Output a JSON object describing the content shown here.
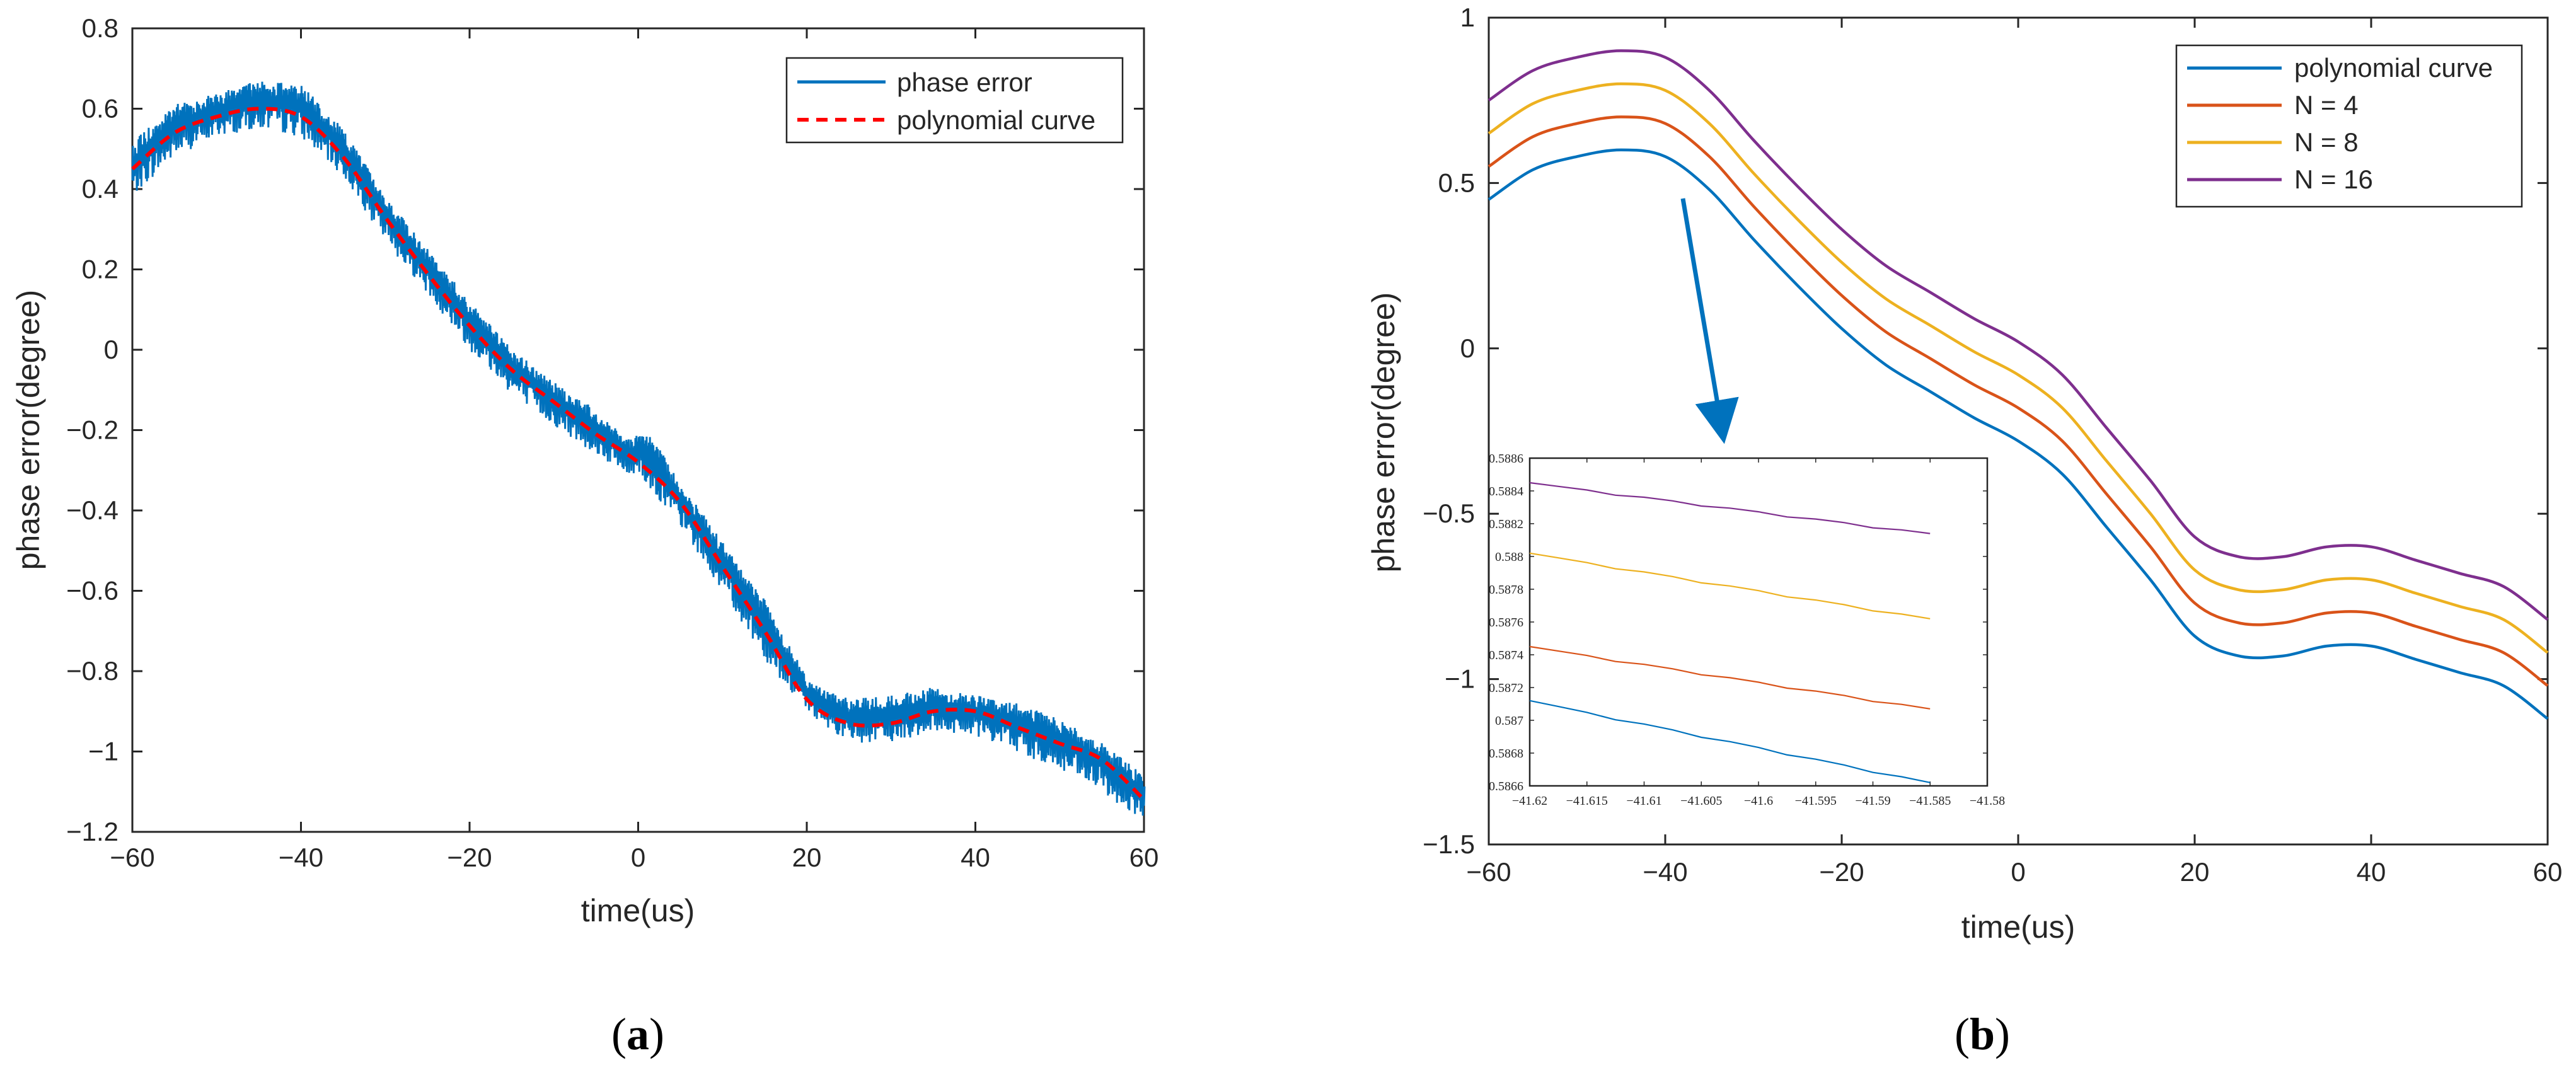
{
  "chart_data": [
    {
      "type": "line",
      "panel_label": "(a)",
      "panel_letter": "a",
      "xlabel": "time(us)",
      "ylabel": "phase error(degree)",
      "xlim": [
        -60,
        60
      ],
      "ylim": [
        -1.2,
        0.8
      ],
      "xticks": [
        -60,
        -40,
        -20,
        0,
        20,
        40,
        60
      ],
      "yticks": [
        -1.2,
        -1,
        -0.8,
        -0.6,
        -0.4,
        -0.2,
        0,
        0.2,
        0.4,
        0.6,
        0.8
      ],
      "xtick_labels": [
        "−60",
        "−40",
        "−20",
        "0",
        "20",
        "40",
        "60"
      ],
      "ytick_labels": [
        "−1.2",
        "−1",
        "−0.8",
        "−0.6",
        "−0.4",
        "−0.2",
        "0",
        "0.2",
        "0.4",
        "0.6",
        "0.8"
      ],
      "legend_position": "top-right",
      "series": [
        {
          "name": "phase error",
          "color": "#0072BD",
          "style": "noisy band",
          "x": [
            -60,
            -55,
            -50,
            -45,
            -40,
            -35,
            -30,
            -25,
            -20,
            -15,
            -10,
            -5,
            -1,
            0,
            1,
            5,
            10,
            15,
            20,
            25,
            30,
            35,
            40,
            45,
            50,
            55,
            60
          ],
          "y_low": [
            0.38,
            0.48,
            0.53,
            0.55,
            0.53,
            0.43,
            0.27,
            0.14,
            0.0,
            -0.11,
            -0.19,
            -0.26,
            -0.32,
            -0.3,
            -0.34,
            -0.44,
            -0.6,
            -0.77,
            -0.9,
            -0.98,
            -0.98,
            -0.95,
            -0.96,
            -1.0,
            -1.05,
            -1.1,
            -1.18
          ],
          "y_high": [
            0.52,
            0.61,
            0.64,
            0.67,
            0.66,
            0.55,
            0.38,
            0.25,
            0.12,
            0.0,
            -0.08,
            -0.15,
            -0.22,
            -0.2,
            -0.2,
            -0.33,
            -0.48,
            -0.62,
            -0.82,
            -0.87,
            -0.86,
            -0.84,
            -0.86,
            -0.88,
            -0.92,
            -0.98,
            -1.06
          ]
        },
        {
          "name": "polynomial curve",
          "color": "#FF0000",
          "style": "dashed",
          "x": [
            -60,
            -55,
            -50,
            -45,
            -40,
            -35,
            -30,
            -25,
            -20,
            -15,
            -10,
            -5,
            0,
            5,
            10,
            15,
            20,
            25,
            30,
            35,
            40,
            45,
            50,
            55,
            60
          ],
          "y": [
            0.45,
            0.54,
            0.58,
            0.6,
            0.58,
            0.48,
            0.33,
            0.19,
            0.06,
            -0.05,
            -0.13,
            -0.21,
            -0.28,
            -0.38,
            -0.54,
            -0.7,
            -0.87,
            -0.93,
            -0.93,
            -0.9,
            -0.9,
            -0.94,
            -0.98,
            -1.02,
            -1.12
          ]
        }
      ]
    },
    {
      "type": "line",
      "panel_label": "(b)",
      "panel_letter": "b",
      "xlabel": "time(us)",
      "ylabel": "phase error(degree)",
      "xlim": [
        -60,
        60
      ],
      "ylim": [
        -1.5,
        1
      ],
      "xticks": [
        -60,
        -40,
        -20,
        0,
        20,
        40,
        60
      ],
      "yticks": [
        -1.5,
        -1,
        -0.5,
        0,
        0.5,
        1
      ],
      "xtick_labels": [
        "−60",
        "−40",
        "−20",
        "0",
        "20",
        "40",
        "60"
      ],
      "ytick_labels": [
        "−1.5",
        "−1",
        "−0.5",
        "0",
        "0.5",
        "1"
      ],
      "legend_position": "top-right",
      "x": [
        -60,
        -55,
        -50,
        -45,
        -40,
        -35,
        -30,
        -25,
        -20,
        -15,
        -10,
        -5,
        0,
        5,
        10,
        15,
        20,
        25,
        30,
        35,
        40,
        45,
        50,
        55,
        60
      ],
      "series": [
        {
          "name": "polynomial curve",
          "color": "#0072BD",
          "y": [
            0.45,
            0.54,
            0.58,
            0.6,
            0.58,
            0.48,
            0.33,
            0.19,
            0.06,
            -0.05,
            -0.13,
            -0.21,
            -0.28,
            -0.38,
            -0.54,
            -0.7,
            -0.87,
            -0.93,
            -0.93,
            -0.9,
            -0.9,
            -0.94,
            -0.98,
            -1.02,
            -1.12
          ]
        },
        {
          "name": "N = 4",
          "color": "#D95319",
          "y": [
            0.55,
            0.64,
            0.68,
            0.7,
            0.68,
            0.58,
            0.43,
            0.29,
            0.16,
            0.05,
            -0.03,
            -0.11,
            -0.18,
            -0.28,
            -0.44,
            -0.6,
            -0.77,
            -0.83,
            -0.83,
            -0.8,
            -0.8,
            -0.84,
            -0.88,
            -0.92,
            -1.02
          ]
        },
        {
          "name": "N = 8",
          "color": "#EDB120",
          "y": [
            0.65,
            0.74,
            0.78,
            0.8,
            0.78,
            0.68,
            0.53,
            0.39,
            0.26,
            0.15,
            0.07,
            -0.01,
            -0.08,
            -0.18,
            -0.34,
            -0.5,
            -0.67,
            -0.73,
            -0.73,
            -0.7,
            -0.7,
            -0.74,
            -0.78,
            -0.82,
            -0.92
          ]
        },
        {
          "name": "N = 16",
          "color": "#7E2F8E",
          "y": [
            0.75,
            0.84,
            0.88,
            0.9,
            0.88,
            0.78,
            0.63,
            0.49,
            0.36,
            0.25,
            0.17,
            0.09,
            0.02,
            -0.08,
            -0.24,
            -0.4,
            -0.57,
            -0.63,
            -0.63,
            -0.6,
            -0.6,
            -0.64,
            -0.68,
            -0.72,
            -0.82
          ]
        }
      ],
      "inset": {
        "xlim": [
          -41.62,
          -41.58
        ],
        "ylim": [
          0.5866,
          0.5886
        ],
        "xticks": [
          -41.62,
          -41.615,
          -41.61,
          -41.605,
          -41.6,
          -41.595,
          -41.59,
          -41.585,
          -41.58
        ],
        "yticks": [
          0.5866,
          0.5868,
          0.587,
          0.5872,
          0.5874,
          0.5876,
          0.5878,
          0.588,
          0.5882,
          0.5884,
          0.5886
        ],
        "xtick_labels": [
          "−41.62",
          "−41.615",
          "−41.61",
          "−41.605",
          "−41.6",
          "−41.595",
          "−41.59",
          "−41.585",
          "−41.58"
        ],
        "ytick_labels": [
          "0.5866",
          "0.5868",
          "0.587",
          "0.5872",
          "0.5874",
          "0.5876",
          "0.5878",
          "0.588",
          "0.5882",
          "0.5884",
          "0.5886"
        ],
        "x": [
          -41.62,
          -41.585
        ],
        "series": [
          {
            "name": "polynomial curve",
            "color": "#0072BD",
            "y": [
              0.58712,
              0.58662
            ]
          },
          {
            "name": "N = 4",
            "color": "#D95319",
            "y": [
              0.58745,
              0.58707
            ]
          },
          {
            "name": "N = 8",
            "color": "#EDB120",
            "y": [
              0.58802,
              0.58762
            ]
          },
          {
            "name": "N = 16",
            "color": "#7E2F8E",
            "y": [
              0.58845,
              0.58814
            ]
          }
        ]
      }
    }
  ]
}
